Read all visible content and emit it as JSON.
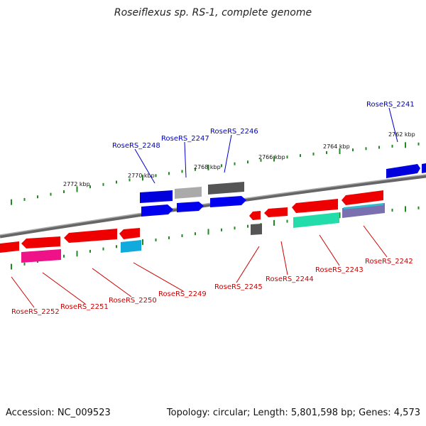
{
  "title": "Roseiflexus sp. RS-1, complete genome",
  "accession": "Accession: NC_009523",
  "stats": "Topology: circular; Length: 5,801,598 bp; Genes: 4,573",
  "kbp_ticks": [
    "2772 kbp",
    "2770 kbp",
    "2768 kbp",
    "2766 kbp",
    "2764 kbp",
    "2762 kbp"
  ],
  "genes": [
    {
      "id": "RoseRS_2241",
      "strand": "+",
      "color": "#0000dd"
    },
    {
      "id": "RoseRS_2242",
      "strand": "-",
      "color": "#7a6fb0"
    },
    {
      "id": "RoseRS_2243",
      "strand": "-",
      "color": "#22ddaa"
    },
    {
      "id": "RoseRS_2244",
      "strand": "-",
      "color": "#ee0000"
    },
    {
      "id": "RoseRS_2245",
      "strand": "-",
      "color": "#555555"
    },
    {
      "id": "RoseRS_2246",
      "strand": "+",
      "color": "#555555"
    },
    {
      "id": "RoseRS_2247",
      "strand": "+",
      "color": "#aaaaaa"
    },
    {
      "id": "RoseRS_2248",
      "strand": "+",
      "color": "#0000dd"
    },
    {
      "id": "RoseRS_2249",
      "strand": "-",
      "color": "#11aadd"
    },
    {
      "id": "RoseRS_2250",
      "strand": "-",
      "color": "#ee0000"
    },
    {
      "id": "RoseRS_2251",
      "strand": "-",
      "color": "#ee0000"
    },
    {
      "id": "RoseRS_2252",
      "strand": "-",
      "color": "#ee1188"
    }
  ],
  "colors": {
    "forward_label": "#0000cc",
    "reverse_label": "#cc0000",
    "backbone": "#777777",
    "tick": "#228822"
  }
}
